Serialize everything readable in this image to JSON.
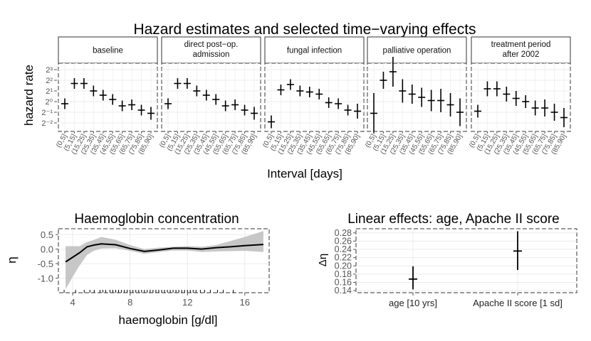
{
  "figure": {
    "title": "Hazard estimates and selected time−varying effects"
  },
  "chart_data": [
    {
      "type": "scatter",
      "kind": "faceted-intervals",
      "title": "Hazard estimates and selected time−varying effects",
      "xlabel": "Interval [days]",
      "ylabel": "hazard rate",
      "ytick_labels": [
        "2⁻²",
        "2⁻¹",
        "2⁰",
        "2¹",
        "2²",
        "2³"
      ],
      "y_log2_range": [
        -2.8,
        3.6
      ],
      "categories": [
        "(0,5]",
        "(5,15]",
        "(15,25]",
        "(25,35]",
        "(35,45]",
        "(45,55]",
        "(55,65]",
        "(65,75]",
        "(75,85]",
        "(85,90]"
      ],
      "grid": true,
      "panels": [
        {
          "name": "baseline",
          "log2_estimate": [
            -0.2,
            1.7,
            1.7,
            1.0,
            0.6,
            0.2,
            -0.4,
            -0.3,
            -0.8,
            -1.1
          ],
          "log2_lower": [
            -0.7,
            1.2,
            1.2,
            0.5,
            0.1,
            -0.3,
            -0.9,
            -0.8,
            -1.3,
            -1.7
          ],
          "log2_upper": [
            0.3,
            2.2,
            2.2,
            1.5,
            1.1,
            0.7,
            0.1,
            0.2,
            -0.3,
            -0.5
          ]
        },
        {
          "name": "direct post−op.\nadmission",
          "log2_estimate": [
            -0.2,
            1.7,
            1.7,
            1.0,
            0.6,
            0.2,
            -0.4,
            -0.3,
            -0.8,
            -1.1
          ],
          "log2_lower": [
            -0.7,
            1.2,
            1.2,
            0.5,
            0.1,
            -0.3,
            -0.9,
            -0.8,
            -1.3,
            -1.7
          ],
          "log2_upper": [
            0.3,
            2.2,
            2.2,
            1.5,
            1.1,
            0.7,
            0.1,
            0.2,
            -0.3,
            -0.5
          ]
        },
        {
          "name": "fungal infection",
          "log2_estimate": [
            -1.9,
            1.1,
            1.6,
            1.0,
            0.9,
            0.7,
            -0.1,
            -0.2,
            -0.8,
            -0.9
          ],
          "log2_lower": [
            -2.5,
            0.6,
            1.1,
            0.5,
            0.4,
            0.2,
            -0.6,
            -0.7,
            -1.3,
            -1.6
          ],
          "log2_upper": [
            -1.3,
            1.6,
            2.1,
            1.5,
            1.4,
            1.2,
            0.4,
            0.3,
            -0.3,
            -0.2
          ]
        },
        {
          "name": "palliative operation",
          "log2_estimate": [
            -1.1,
            2.0,
            2.8,
            1.0,
            0.7,
            0.4,
            0.1,
            0.1,
            -0.3,
            -1.0
          ],
          "log2_lower": [
            -3.0,
            1.2,
            1.4,
            -0.1,
            -0.2,
            -0.5,
            -0.9,
            -1.0,
            -1.4,
            -2.3
          ],
          "log2_upper": [
            0.8,
            2.8,
            4.2,
            2.1,
            1.6,
            1.3,
            1.1,
            1.2,
            0.8,
            0.3
          ]
        },
        {
          "name": "treatment period\nafter 2002",
          "log2_estimate": [
            -0.9,
            1.2,
            1.2,
            0.7,
            0.3,
            0.0,
            -0.6,
            -0.6,
            -1.0,
            -1.5
          ],
          "log2_lower": [
            -1.5,
            0.5,
            0.5,
            0.0,
            -0.4,
            -0.6,
            -1.3,
            -1.4,
            -1.8,
            -2.4
          ],
          "log2_upper": [
            -0.3,
            1.9,
            1.9,
            1.4,
            1.0,
            0.6,
            0.1,
            0.2,
            -0.2,
            -0.6
          ]
        }
      ]
    },
    {
      "type": "area",
      "kind": "smooth-effect-with-band",
      "title": "Haemoglobin concentration",
      "xlabel": "haemoglobin [g/dl]",
      "ylabel": "η",
      "xlim": [
        3.0,
        17.7
      ],
      "ylim": [
        -1.5,
        0.7
      ],
      "xticks": [
        4,
        8,
        12,
        16
      ],
      "yticks": [
        -1.0,
        -0.5,
        0.0,
        0.5
      ],
      "grid": true,
      "x": [
        3.5,
        4.0,
        4.5,
        5.0,
        5.5,
        6.0,
        7.0,
        8.0,
        9.0,
        10.0,
        11.0,
        12.0,
        13.0,
        14.0,
        15.0,
        16.0,
        17.3
      ],
      "estimate": [
        -0.44,
        -0.28,
        -0.12,
        0.08,
        0.14,
        0.18,
        0.15,
        0.02,
        -0.08,
        -0.03,
        0.03,
        0.03,
        0.0,
        0.05,
        0.08,
        0.12,
        0.16
      ],
      "lower": [
        -1.38,
        -0.95,
        -0.55,
        -0.2,
        -0.05,
        0.02,
        0.03,
        -0.06,
        -0.16,
        -0.1,
        -0.05,
        -0.05,
        -0.1,
        -0.08,
        -0.07,
        -0.06,
        -0.1
      ],
      "upper": [
        0.1,
        0.1,
        0.1,
        0.24,
        0.32,
        0.42,
        0.32,
        0.14,
        0.0,
        0.05,
        0.08,
        0.1,
        0.08,
        0.14,
        0.28,
        0.42,
        0.62
      ],
      "rug": [
        3.4,
        4.2,
        4.8,
        5.2,
        5.5,
        5.9,
        6.1,
        6.3,
        6.6,
        6.8,
        7.0,
        7.2,
        7.4,
        7.6,
        7.8,
        8.0,
        8.2,
        8.4,
        8.6,
        8.8,
        9.0,
        9.2,
        9.4,
        9.6,
        9.8,
        10.0,
        10.2,
        10.4,
        10.6,
        10.8,
        11.0,
        11.2,
        11.4,
        11.6,
        11.8,
        12.0,
        12.2,
        12.4,
        12.6,
        12.9,
        13.2,
        13.6,
        14.1,
        14.5,
        15.2
      ]
    },
    {
      "type": "scatter",
      "kind": "point-with-interval",
      "title": "Linear effects: age, Apache II score",
      "xlabel": "",
      "ylabel": "Δη",
      "categories": [
        "age [10 yrs]",
        "Apache II score [1 sd]"
      ],
      "values": [
        0.168,
        0.236
      ],
      "lower": [
        0.143,
        0.19
      ],
      "upper": [
        0.199,
        0.284
      ],
      "ylim": [
        0.135,
        0.29
      ],
      "yticks": [
        0.14,
        0.16,
        0.18,
        0.2,
        0.22,
        0.24,
        0.26,
        0.28
      ],
      "ytick_labels": [
        "0.14",
        "0.16",
        "0.18",
        "0.20",
        "0.22",
        "0.24",
        "0.26",
        "0.28"
      ],
      "grid": true
    }
  ]
}
